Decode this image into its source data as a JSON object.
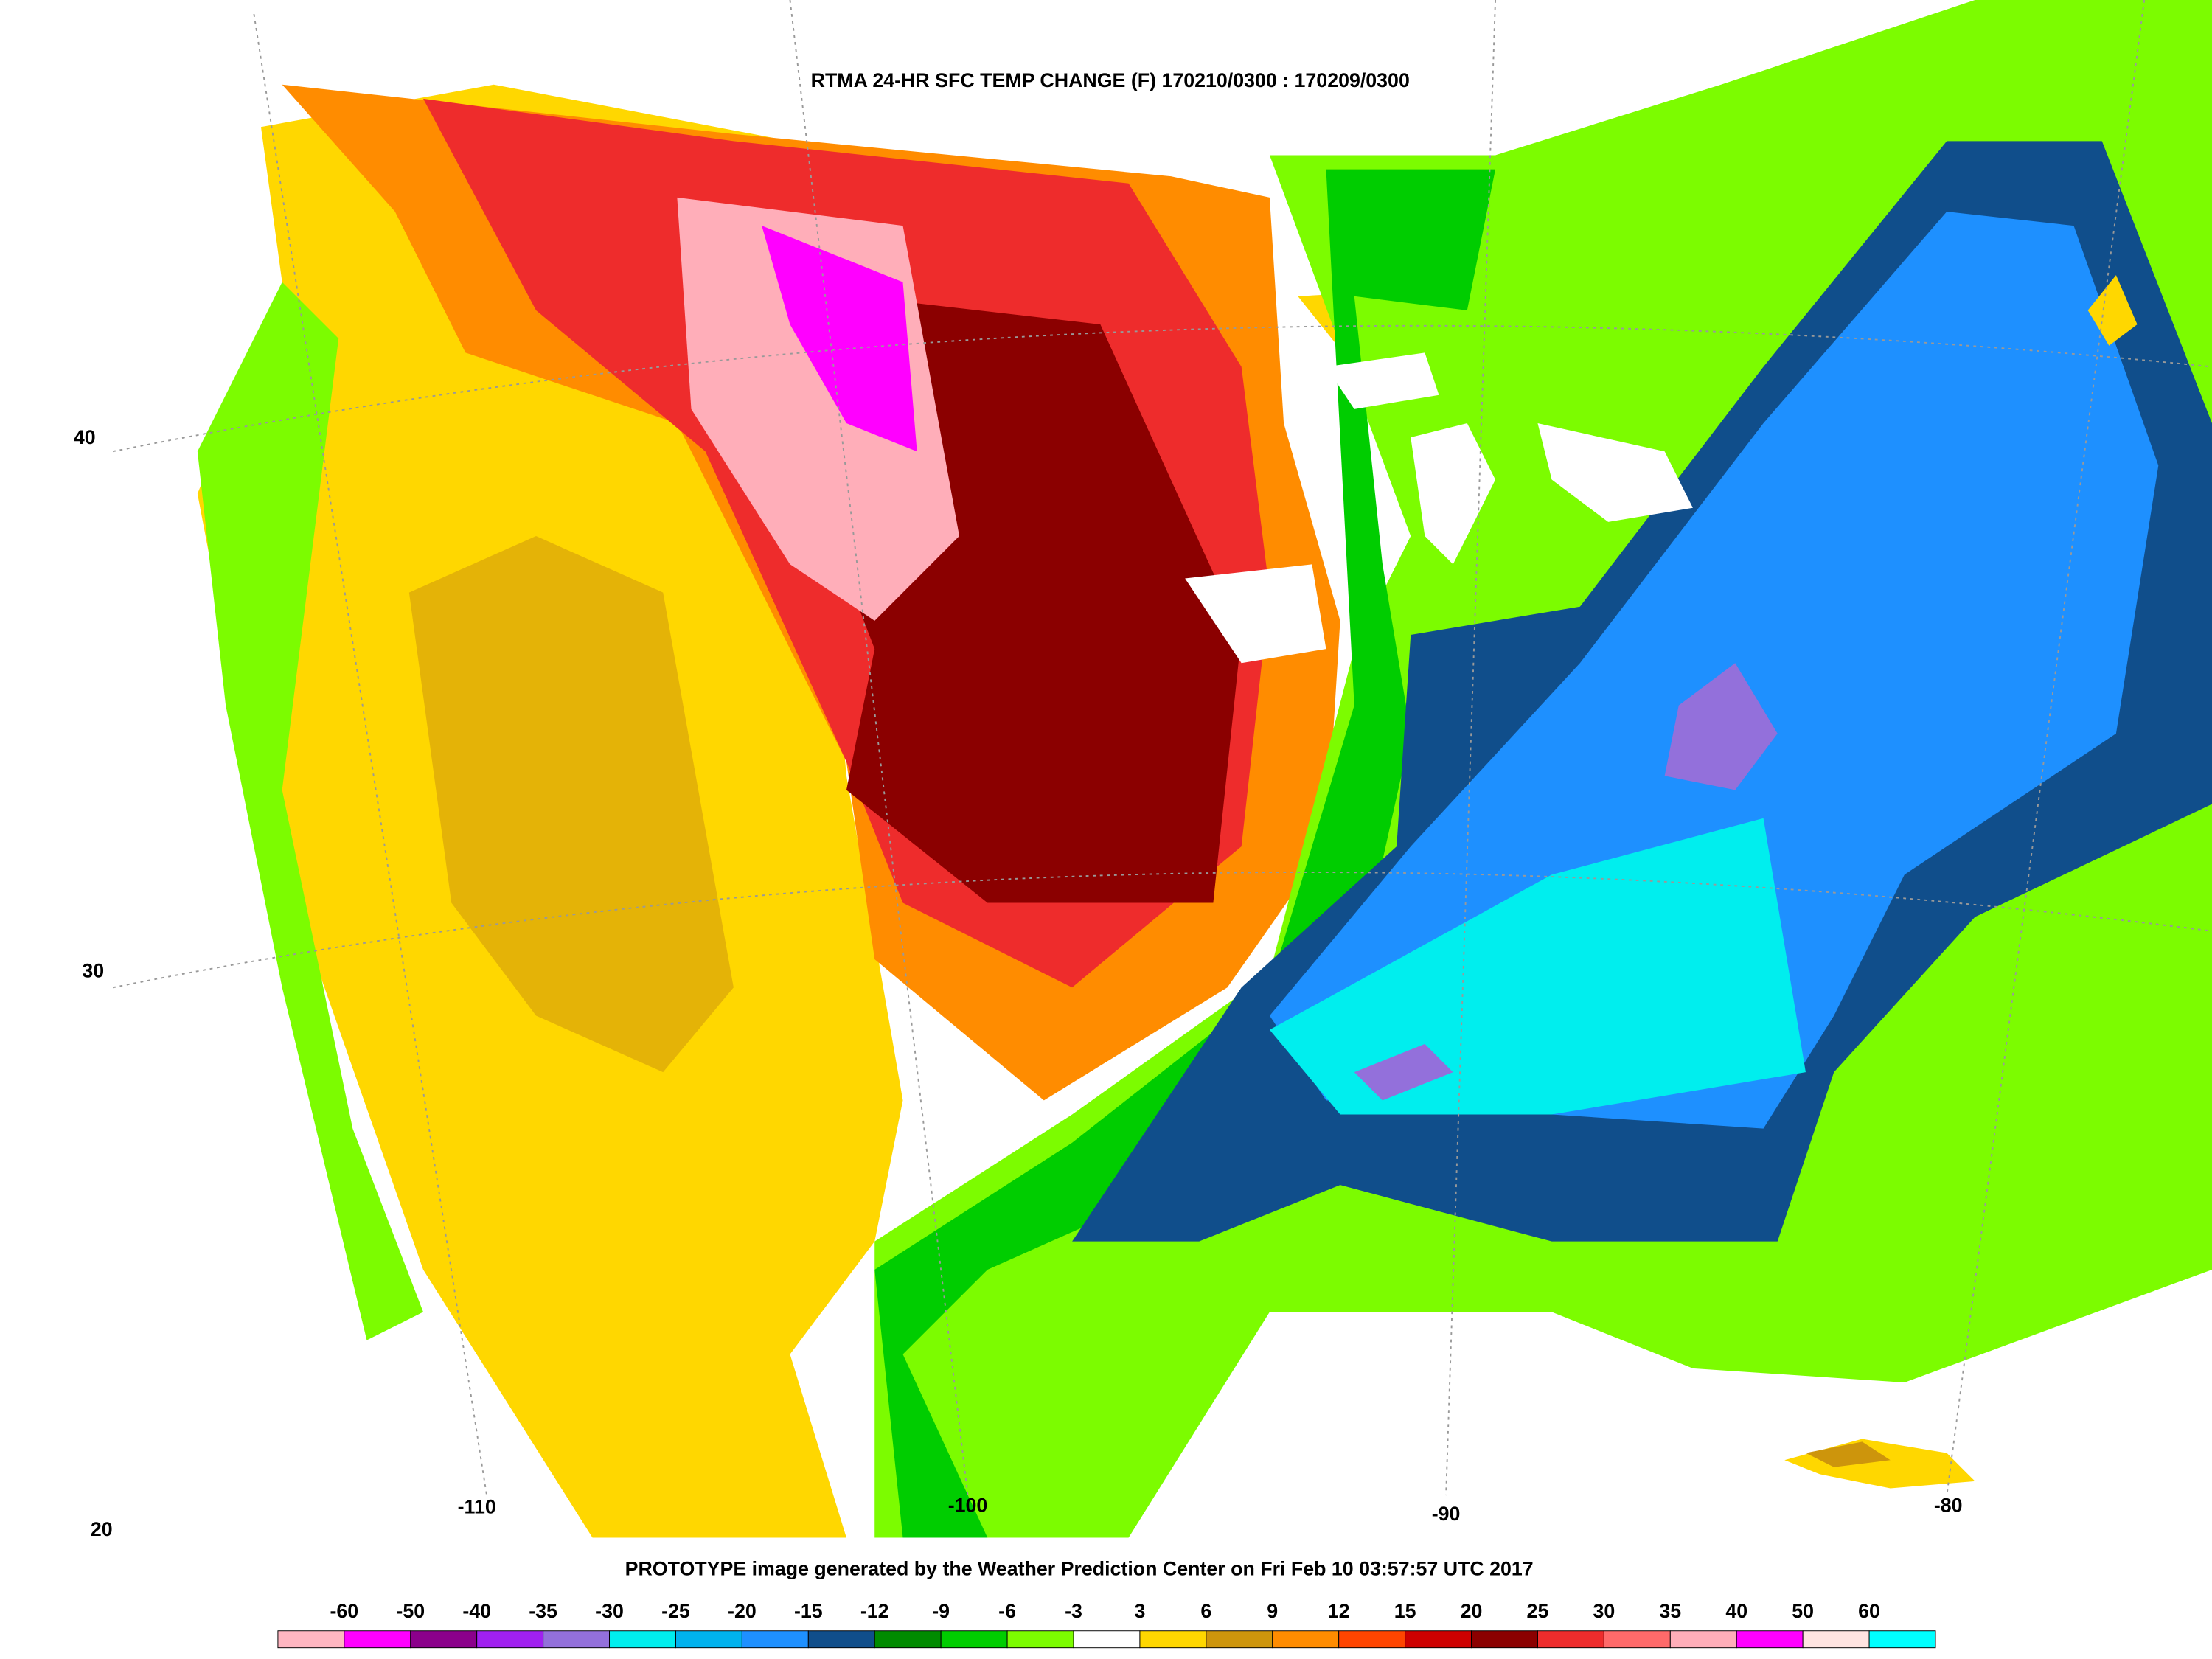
{
  "title": "RTMA 24-HR SFC TEMP CHANGE (F) 170210/0300 : 170209/0300",
  "footer": "PROTOTYPE image generated by the Weather Prediction Center on Fri Feb 10 03:57:57 UTC 2017",
  "latitude_labels": [
    "40",
    "30",
    "20"
  ],
  "longitude_labels": [
    "-110",
    "-100",
    "-90",
    "-80"
  ],
  "colorbar": {
    "labels": [
      "-60",
      "-50",
      "-40",
      "-35",
      "-30",
      "-25",
      "-20",
      "-15",
      "-12",
      "-9",
      "-6",
      "-3",
      "3",
      "6",
      "9",
      "12",
      "15",
      "20",
      "25",
      "30",
      "35",
      "40",
      "50",
      "60"
    ],
    "colors": [
      "#ffb6c1",
      "#ff00ff",
      "#8b008b",
      "#a020f0",
      "#9370db",
      "#00eeee",
      "#00b2ee",
      "#1e90ff",
      "#104e8b",
      "#008b00",
      "#00cd00",
      "#7cfc00",
      "#ffffff",
      "#ffd700",
      "#cd950c",
      "#ff8c00",
      "#ff4500",
      "#cd0000",
      "#8b0000",
      "#ee2c2c",
      "#ff6a6a",
      "#ffaeb9",
      "#ff00ff",
      "#ffe4e1",
      "#00ffff"
    ]
  }
}
